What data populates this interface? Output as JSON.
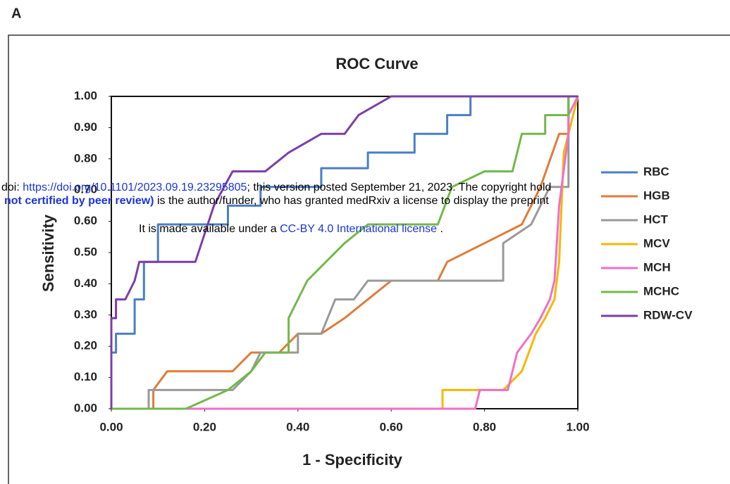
{
  "panel_label": "A",
  "chart_data": {
    "type": "line",
    "title": "ROC Curve",
    "x_label": "1 - Specificity",
    "y_label": "Sensitivity",
    "xlim": [
      0,
      1
    ],
    "ylim": [
      0,
      1
    ],
    "xticks": [
      {
        "value": 0,
        "label": "0.00"
      },
      {
        "value": 0.2,
        "label": "0.20"
      },
      {
        "value": 0.4,
        "label": "0.40"
      },
      {
        "value": 0.6,
        "label": "0.60"
      },
      {
        "value": 0.8,
        "label": "0.80"
      },
      {
        "value": 1,
        "label": "1.00"
      }
    ],
    "yticks": [
      {
        "value": 0,
        "label": "0.00"
      },
      {
        "value": 0.1,
        "label": "0.10"
      },
      {
        "value": 0.2,
        "label": "0.20"
      },
      {
        "value": 0.3,
        "label": "0.30"
      },
      {
        "value": 0.4,
        "label": "0.40"
      },
      {
        "value": 0.5,
        "label": "0.50"
      },
      {
        "value": 0.6,
        "label": "0.60"
      },
      {
        "value": 0.7,
        "label": "0.70"
      },
      {
        "value": 0.8,
        "label": "0.80"
      },
      {
        "value": 0.9,
        "label": "0.90"
      },
      {
        "value": 1,
        "label": "1.00"
      }
    ],
    "grid": false,
    "legend": "right",
    "series": [
      {
        "name": "RBC",
        "color": "#4a7fc4",
        "x": [
          0,
          0,
          0.01,
          0.01,
          0.05,
          0.05,
          0.07,
          0.07,
          0.1,
          0.1,
          0.25,
          0.25,
          0.32,
          0.32,
          0.45,
          0.45,
          0.55,
          0.55,
          0.65,
          0.65,
          0.72,
          0.72,
          0.77,
          0.77,
          1
        ],
        "values": [
          0,
          0.18,
          0.18,
          0.24,
          0.24,
          0.35,
          0.35,
          0.47,
          0.47,
          0.59,
          0.59,
          0.65,
          0.65,
          0.71,
          0.71,
          0.77,
          0.77,
          0.82,
          0.82,
          0.88,
          0.88,
          0.94,
          0.94,
          1,
          1
        ]
      },
      {
        "name": "HGB",
        "color": "#e07b39",
        "x": [
          0,
          0.09,
          0.09,
          0.12,
          0.26,
          0.3,
          0.36,
          0.4,
          0.45,
          0.5,
          0.55,
          0.6,
          0.7,
          0.72,
          0.8,
          0.88,
          0.92,
          0.96,
          0.98,
          0.98,
          1
        ],
        "values": [
          0,
          0,
          0.06,
          0.12,
          0.12,
          0.18,
          0.18,
          0.24,
          0.24,
          0.29,
          0.35,
          0.41,
          0.41,
          0.47,
          0.53,
          0.59,
          0.71,
          0.88,
          0.88,
          1,
          1
        ]
      },
      {
        "name": "HCT",
        "color": "#999999",
        "x": [
          0,
          0.08,
          0.08,
          0.26,
          0.3,
          0.32,
          0.4,
          0.4,
          0.45,
          0.48,
          0.52,
          0.55,
          0.84,
          0.84,
          0.9,
          0.94,
          0.98,
          0.98,
          1
        ],
        "values": [
          0,
          0,
          0.06,
          0.06,
          0.12,
          0.18,
          0.18,
          0.24,
          0.24,
          0.35,
          0.35,
          0.41,
          0.41,
          0.53,
          0.59,
          0.71,
          0.71,
          1,
          1
        ]
      },
      {
        "name": "MCV",
        "color": "#f5b800",
        "x": [
          0,
          0.71,
          0.71,
          0.84,
          0.88,
          0.91,
          0.93,
          0.95,
          0.96,
          0.97,
          0.98,
          1
        ],
        "values": [
          0,
          0,
          0.06,
          0.06,
          0.12,
          0.24,
          0.29,
          0.35,
          0.47,
          0.82,
          0.88,
          1
        ]
      },
      {
        "name": "MCH",
        "color": "#ef6fc8",
        "x": [
          0,
          0.78,
          0.79,
          0.85,
          0.87,
          0.9,
          0.92,
          0.94,
          0.95,
          0.96,
          0.98,
          0.98,
          1
        ],
        "values": [
          0,
          0,
          0.06,
          0.06,
          0.18,
          0.24,
          0.29,
          0.35,
          0.41,
          0.65,
          0.88,
          0.94,
          1
        ]
      },
      {
        "name": "MCHC",
        "color": "#72b84a",
        "x": [
          0,
          0.16,
          0.25,
          0.3,
          0.33,
          0.38,
          0.38,
          0.42,
          0.46,
          0.5,
          0.55,
          0.7,
          0.73,
          0.8,
          0.86,
          0.88,
          0.93,
          0.93,
          0.98,
          0.98,
          1
        ],
        "values": [
          0,
          0,
          0.06,
          0.12,
          0.18,
          0.18,
          0.29,
          0.41,
          0.47,
          0.53,
          0.59,
          0.59,
          0.71,
          0.76,
          0.76,
          0.88,
          0.88,
          0.94,
          0.94,
          1,
          1
        ]
      },
      {
        "name": "RDW-CV",
        "color": "#7b3fa8",
        "x": [
          0,
          0,
          0.01,
          0.01,
          0.03,
          0.05,
          0.06,
          0.18,
          0.22,
          0.26,
          0.33,
          0.38,
          0.45,
          0.5,
          0.53,
          0.6,
          1
        ],
        "values": [
          0,
          0.29,
          0.29,
          0.35,
          0.35,
          0.41,
          0.47,
          0.47,
          0.65,
          0.76,
          0.76,
          0.82,
          0.88,
          0.88,
          0.94,
          1,
          1
        ]
      }
    ]
  },
  "watermark": {
    "line1": {
      "prefix": "doi: ",
      "link": "https://doi.org/10.1101/2023.09.19.23295805",
      "suffix": "; this version posted September 21, 2023. The copyright hold"
    },
    "line2": {
      "bold": "not certified by peer review)",
      "rest": " is the author/funder, who has granted medRxiv a license to display the preprint"
    },
    "line3": {
      "prefix": "It is made available under a ",
      "link": "CC-BY 4.0 International license",
      "suffix": " ."
    }
  }
}
